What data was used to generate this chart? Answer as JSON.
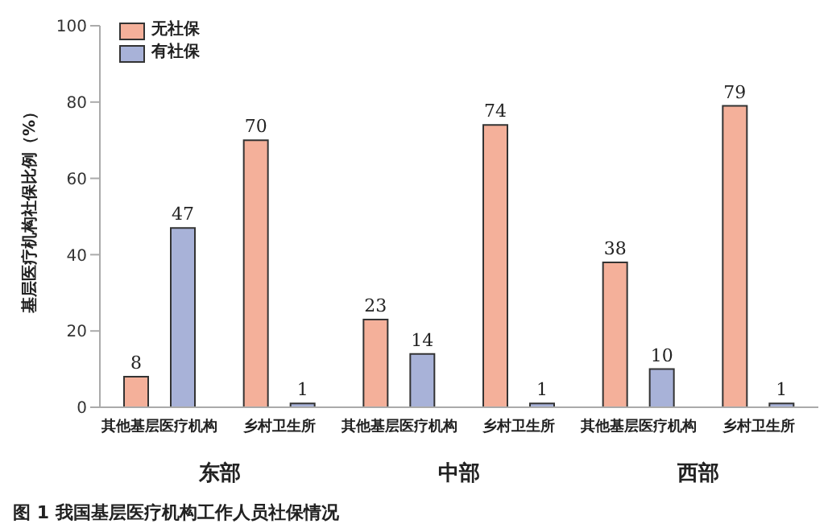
{
  "chart_data": {
    "type": "bar",
    "ylabel": "基层医疗机构社保比例（%）",
    "categories": [
      "其他基层医疗机构",
      "乡村卫生所",
      "其他基层医疗机构",
      "乡村卫生所",
      "其他基层医疗机构",
      "乡村卫生所"
    ],
    "series": [
      {
        "name": "无社保",
        "color": "#f4b09a",
        "values": [
          8,
          70,
          23,
          74,
          38,
          79
        ]
      },
      {
        "name": "有社保",
        "color": "#a8b2d8",
        "values": [
          47,
          1,
          14,
          1,
          10,
          1
        ]
      }
    ],
    "ylim": [
      0,
      100
    ],
    "yticks": [
      0,
      20,
      40,
      60,
      80,
      100
    ],
    "grid": false,
    "legend": "top left",
    "data_labels": true,
    "annotations": [
      "东部",
      "中部",
      "西部",
      "图 1 我国基层医疗机构工作人员社保情况"
    ]
  }
}
